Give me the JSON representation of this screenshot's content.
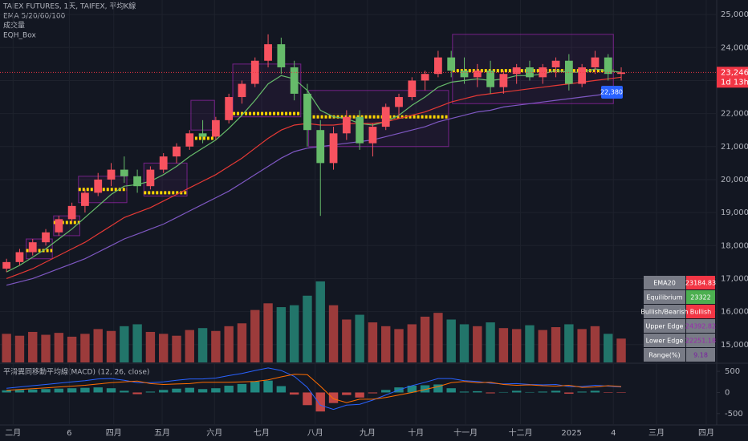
{
  "header": {
    "title": "TAIEX FUTURES, 1天, TAIFEX, 平均K線",
    "indicators": [
      "EMA 5/20/60/100",
      "成交量",
      "EQH_Box"
    ]
  },
  "chart_data": [
    {
      "type": "candlestick",
      "xlim": [
        -0.5,
        54.3
      ],
      "ylim": [
        14460,
        25440
      ],
      "xticks": [
        {
          "value": 0.5,
          "label": "二月"
        },
        {
          "value": 4.8,
          "label": "6"
        },
        {
          "value": 8.2,
          "label": "四月"
        },
        {
          "value": 11.9,
          "label": "五月"
        },
        {
          "value": 15.9,
          "label": "六月"
        },
        {
          "value": 19.5,
          "label": "七月"
        },
        {
          "value": 23.6,
          "label": "八月"
        },
        {
          "value": 27.6,
          "label": "九月"
        },
        {
          "value": 31.3,
          "label": "十月"
        },
        {
          "value": 35.1,
          "label": "十一月"
        },
        {
          "value": 39.3,
          "label": "十二月"
        },
        {
          "value": 43.2,
          "label": "2025"
        },
        {
          "value": 46.4,
          "label": "4"
        },
        {
          "value": 49.7,
          "label": "三月"
        },
        {
          "value": 53.5,
          "label": "四月"
        }
      ],
      "yticks": [
        {
          "value": 25000,
          "label": "25,000"
        },
        {
          "value": 24000,
          "label": "24,000"
        },
        {
          "value": 23000,
          "label": "23,000"
        },
        {
          "value": 22000,
          "label": "22,000"
        },
        {
          "value": 21000,
          "label": "21,000"
        },
        {
          "value": 20000,
          "label": "20,000"
        },
        {
          "value": 19000,
          "label": "19,000"
        },
        {
          "value": 18000,
          "label": "18,000"
        },
        {
          "value": 17000,
          "label": "17,000"
        },
        {
          "value": 16000,
          "label": "16,000"
        },
        {
          "value": 15000,
          "label": "15,000"
        }
      ],
      "grid": true,
      "up_color": "#f7525f",
      "down_color": "#66bb6a",
      "open": [
        17300,
        17500,
        17800,
        18100,
        18400,
        18800,
        19200,
        19600,
        20000,
        20300,
        20100,
        19800,
        20300,
        20700,
        21000,
        21400,
        21300,
        21800,
        22500,
        22900,
        23600,
        24100,
        23400,
        22600,
        21500,
        20500,
        21400,
        21900,
        21100,
        21600,
        22200,
        22500,
        23000,
        23200,
        23700,
        23300,
        23100,
        23300,
        22800,
        23200,
        23400,
        23100,
        23400,
        23600,
        22900,
        23400,
        23700,
        23200
      ],
      "high": [
        17600,
        17900,
        18200,
        18500,
        18900,
        19300,
        19700,
        20200,
        20500,
        20700,
        20300,
        20400,
        20800,
        21100,
        21500,
        21800,
        21900,
        22600,
        23000,
        23700,
        24400,
        24300,
        23600,
        22900,
        21800,
        21600,
        22100,
        22100,
        21700,
        22300,
        22600,
        23100,
        23300,
        23900,
        23900,
        23700,
        23500,
        23600,
        23300,
        23500,
        23600,
        23500,
        23700,
        23800,
        23500,
        23900,
        23800,
        23400
      ],
      "low": [
        17200,
        17400,
        17700,
        18000,
        18300,
        18700,
        19000,
        19500,
        19800,
        19900,
        19600,
        19700,
        20200,
        20500,
        20900,
        21100,
        21200,
        21700,
        22300,
        22800,
        23400,
        23200,
        22400,
        21000,
        18900,
        20300,
        21200,
        20900,
        20700,
        21500,
        21900,
        22400,
        22700,
        23100,
        23100,
        22900,
        22800,
        22600,
        22600,
        22900,
        23000,
        22900,
        23100,
        22700,
        22800,
        23200,
        23000,
        23000
      ],
      "close": [
        17500,
        17800,
        18100,
        18400,
        18800,
        19200,
        19600,
        20000,
        20300,
        20100,
        19800,
        20300,
        20700,
        21000,
        21400,
        21300,
        21800,
        22500,
        22900,
        23600,
        24100,
        23400,
        22600,
        21500,
        20500,
        21400,
        21900,
        21100,
        21600,
        22200,
        22500,
        23000,
        23200,
        23700,
        23300,
        23100,
        23300,
        22800,
        23200,
        23400,
        23100,
        23400,
        23600,
        22900,
        23400,
        23700,
        23200,
        23246
      ],
      "volume": [
        30,
        28,
        32,
        29,
        31,
        27,
        30,
        35,
        33,
        38,
        40,
        32,
        30,
        28,
        34,
        36,
        33,
        38,
        41,
        55,
        62,
        58,
        60,
        70,
        85,
        60,
        45,
        50,
        42,
        38,
        35,
        40,
        48,
        52,
        45,
        40,
        38,
        42,
        36,
        35,
        39,
        34,
        37,
        40,
        35,
        38,
        30,
        25
      ],
      "volume_ylim": [
        0,
        90
      ],
      "volume_up_color": "#9c3b3b",
      "volume_down_color": "#22756a",
      "series": [
        {
          "color": "#66bb6a",
          "values": [
            17200,
            17400,
            17650,
            17900,
            18200,
            18500,
            18850,
            19200,
            19550,
            19800,
            19850,
            19950,
            20150,
            20400,
            20700,
            20950,
            21200,
            21550,
            21950,
            22400,
            22900,
            23150,
            23050,
            22700,
            22100,
            21900,
            21850,
            21700,
            21650,
            21750,
            21950,
            22250,
            22500,
            22800,
            22950,
            23000,
            23050,
            23000,
            23050,
            23150,
            23150,
            23200,
            23300,
            23250,
            23250,
            23350,
            23300,
            23250
          ]
        },
        {
          "color": "#e53935",
          "values": [
            17000,
            17150,
            17300,
            17500,
            17700,
            17900,
            18100,
            18350,
            18600,
            18850,
            19000,
            19150,
            19350,
            19550,
            19750,
            19950,
            20150,
            20400,
            20650,
            20950,
            21250,
            21500,
            21650,
            21700,
            21650,
            21650,
            21700,
            21700,
            21700,
            21750,
            21850,
            21950,
            22050,
            22200,
            22350,
            22450,
            22550,
            22600,
            22650,
            22700,
            22750,
            22800,
            22850,
            22900,
            22950,
            23000,
            23050,
            23100
          ]
        },
        {
          "color": "#7e57c2",
          "values": [
            16800,
            16900,
            17000,
            17150,
            17300,
            17450,
            17600,
            17800,
            18000,
            18200,
            18350,
            18500,
            18650,
            18850,
            19050,
            19250,
            19450,
            19650,
            19900,
            20150,
            20400,
            20650,
            20850,
            20950,
            21000,
            21050,
            21100,
            21150,
            21200,
            21300,
            21400,
            21500,
            21600,
            21750,
            21850,
            21950,
            22050,
            22100,
            22200,
            22250,
            22300,
            22350,
            22400,
            22450,
            22500,
            22550,
            22600,
            22650
          ]
        }
      ],
      "box_color": "#9c27b0",
      "level_color": "#ffd600",
      "boxes": [
        {
          "x0": 1.5,
          "x1": 3.5,
          "top": 18200,
          "bottom": 17600,
          "level": 17850
        },
        {
          "x0": 3.6,
          "x1": 5.6,
          "top": 18900,
          "bottom": 18300,
          "level": 18700
        },
        {
          "x0": 5.5,
          "x1": 9.2,
          "top": 20100,
          "bottom": 19300,
          "level": 19700
        },
        {
          "x0": 10.5,
          "x1": 13.8,
          "top": 20500,
          "bottom": 19500,
          "level": 19600
        },
        {
          "x0": 14.1,
          "x1": 15.9,
          "top": 22400,
          "bottom": 21500,
          "level": 21250
        },
        {
          "x0": 17.3,
          "x1": 22.5,
          "top": 23500,
          "bottom": 21900,
          "level": 22000
        },
        {
          "x0": 23.1,
          "x1": 33.8,
          "top": 22700,
          "bottom": 21000,
          "level": 21900
        },
        {
          "x0": 34.1,
          "x1": 46.4,
          "top": 24400,
          "bottom": 22300,
          "level": 23300
        }
      ],
      "last_price": {
        "value": 23246,
        "label": "23,246"
      },
      "countdown": "1d 13h",
      "marker_label": {
        "value": 22380,
        "label": "22,380"
      }
    },
    {
      "type": "macd",
      "title": "平滑異同移動平均線(MACD) (12, 26, close)",
      "ylim": [
        -769,
        654
      ],
      "yticks": [
        500,
        0,
        -500
      ],
      "histogram": [
        50,
        60,
        70,
        80,
        90,
        100,
        110,
        120,
        100,
        40,
        -40,
        20,
        60,
        90,
        110,
        80,
        100,
        160,
        200,
        260,
        280,
        150,
        -50,
        -300,
        -450,
        -250,
        -60,
        -120,
        -20,
        60,
        120,
        160,
        170,
        190,
        100,
        20,
        30,
        -20,
        10,
        40,
        10,
        20,
        40,
        -30,
        20,
        40,
        -10,
        -10
      ],
      "up_color": "#26a69a",
      "down_color": "#ef5350",
      "series": [
        {
          "color": "#2962ff",
          "values": [
            100,
            130,
            160,
            190,
            220,
            250,
            280,
            320,
            330,
            290,
            230,
            230,
            250,
            290,
            320,
            320,
            340,
            400,
            450,
            520,
            580,
            520,
            380,
            120,
            -300,
            -400,
            -300,
            -280,
            -180,
            -60,
            60,
            160,
            240,
            330,
            330,
            280,
            260,
            220,
            200,
            210,
            190,
            180,
            190,
            140,
            140,
            170,
            150,
            130
          ]
        },
        {
          "color": "#ff6d00",
          "values": [
            50,
            70,
            90,
            110,
            130,
            150,
            170,
            200,
            230,
            250,
            270,
            210,
            190,
            200,
            210,
            240,
            240,
            240,
            250,
            260,
            300,
            370,
            430,
            420,
            150,
            -150,
            -240,
            -160,
            -160,
            -120,
            -60,
            0,
            70,
            140,
            230,
            260,
            230,
            240,
            190,
            170,
            180,
            160,
            150,
            170,
            120,
            130,
            160,
            140
          ]
        }
      ]
    }
  ],
  "info_table": {
    "rows": [
      {
        "label": "EMA20",
        "value": "23184.83",
        "bg": "#f23645",
        "fg": "#ffffff"
      },
      {
        "label": "Equilibrium",
        "value": "23322",
        "bg": "#4caf50",
        "fg": "#ffffff"
      },
      {
        "label": "Bullish/Bearish",
        "value": "Bullish",
        "bg": "#f23645",
        "fg": "#ffffff"
      },
      {
        "label": "Upper Edge",
        "value": "24392.82",
        "bg": "#787b86",
        "fg": "#9c27b0"
      },
      {
        "label": "Lower Edge",
        "value": "22251.18",
        "bg": "#787b86",
        "fg": "#9c27b0"
      },
      {
        "label": "Range(%)",
        "value": "9.18",
        "bg": "#787b86",
        "fg": "#7b1fa2"
      }
    ]
  }
}
